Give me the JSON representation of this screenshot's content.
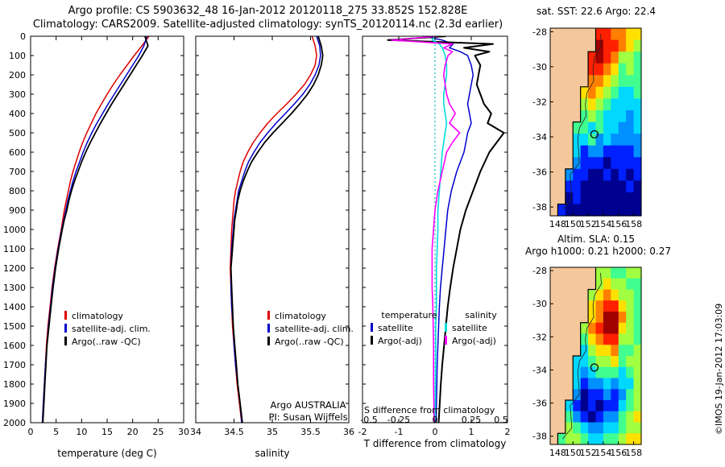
{
  "page": {
    "title_line1": "Argo profile: CS 5903632_48 16-Jan-2012 20120118_275 33.852S 152.828E",
    "title_line2": "Climatology: CARS2009. Satellite-adjusted climatology: synTS_20120114.nc (2.3d earlier)",
    "copyright": "©IMOS 19-Jan-2012 17:03:09"
  },
  "annotations": {
    "argo_program": "Argo AUSTRALIA",
    "argo_pi": "PI: Susan Wijffels"
  },
  "colors": {
    "zero_line": "#00bbbb",
    "land": "#f5c89c"
  },
  "chart_data": [
    {
      "type": "line",
      "xlabel": "temperature (deg C)",
      "xlim": [
        0,
        30
      ],
      "xticks": [
        0,
        5,
        10,
        15,
        20,
        25,
        30
      ],
      "ylim": [
        0,
        2000
      ],
      "yticks": [
        0,
        100,
        200,
        300,
        400,
        500,
        600,
        700,
        800,
        900,
        1000,
        1100,
        1200,
        1300,
        1400,
        1500,
        1600,
        1700,
        1800,
        1900,
        2000
      ],
      "show_depth_labels": true,
      "depths": [
        0,
        50,
        100,
        150,
        200,
        250,
        300,
        350,
        400,
        450,
        500,
        550,
        600,
        650,
        700,
        750,
        800,
        850,
        900,
        950,
        1000,
        1100,
        1200,
        1300,
        1400,
        1500,
        1600,
        1700,
        1800,
        1900,
        2000
      ],
      "series": [
        {
          "name": "climatology",
          "color": "#dd0000",
          "values": [
            23.2,
            21.8,
            20.3,
            18.9,
            17.5,
            16.2,
            15.0,
            13.9,
            12.8,
            11.9,
            11.0,
            10.2,
            9.5,
            8.9,
            8.3,
            7.8,
            7.4,
            7.0,
            6.6,
            6.3,
            6.0,
            5.3,
            4.7,
            4.2,
            3.8,
            3.4,
            3.1,
            2.9,
            2.7,
            2.5,
            2.3
          ]
        },
        {
          "name": "satellite-adj. clim.",
          "color": "#0000cc",
          "values": [
            22.8,
            22.2,
            21.2,
            20.0,
            18.8,
            17.6,
            16.4,
            15.2,
            14.1,
            13.0,
            12.0,
            11.1,
            10.3,
            9.6,
            8.9,
            8.3,
            7.8,
            7.3,
            6.9,
            6.5,
            6.1,
            5.4,
            4.8,
            4.3,
            3.9,
            3.5,
            3.2,
            2.9,
            2.7,
            2.5,
            2.3
          ]
        },
        {
          "name": "Argo(..raw -QC)",
          "color": "#000000",
          "width": 1.8,
          "values": [
            22.4,
            23.0,
            21.9,
            20.7,
            19.5,
            18.3,
            17.1,
            15.9,
            14.8,
            13.7,
            12.7,
            11.7,
            10.8,
            10.0,
            9.3,
            8.6,
            8.0,
            7.5,
            7.1,
            6.6,
            6.2,
            5.5,
            4.9,
            4.4,
            4.0,
            3.6,
            3.2,
            3.0,
            2.8,
            2.6,
            2.4
          ]
        }
      ]
    },
    {
      "type": "line",
      "xlabel": "salinity",
      "xlim": [
        34,
        36
      ],
      "xticks": [
        34,
        34.5,
        35,
        35.5,
        36
      ],
      "ylim": [
        0,
        2000
      ],
      "yticks": [
        0,
        100,
        200,
        300,
        400,
        500,
        600,
        700,
        800,
        900,
        1000,
        1100,
        1200,
        1300,
        1400,
        1500,
        1600,
        1700,
        1800,
        1900,
        2000
      ],
      "show_depth_labels": false,
      "depths": [
        0,
        50,
        100,
        150,
        200,
        250,
        300,
        350,
        400,
        450,
        500,
        550,
        600,
        650,
        700,
        750,
        800,
        850,
        900,
        950,
        1000,
        1100,
        1200,
        1300,
        1400,
        1500,
        1600,
        1700,
        1800,
        1900,
        2000
      ],
      "series": [
        {
          "name": "climatology",
          "color": "#dd0000",
          "values": [
            35.52,
            35.56,
            35.58,
            35.56,
            35.5,
            35.42,
            35.31,
            35.19,
            35.06,
            34.94,
            34.84,
            34.75,
            34.68,
            34.62,
            34.58,
            34.55,
            34.52,
            34.5,
            34.49,
            34.48,
            34.47,
            34.46,
            34.45,
            34.46,
            34.47,
            34.48,
            34.5,
            34.52,
            34.54,
            34.57,
            34.6
          ]
        },
        {
          "name": "satellite-adj. clim.",
          "color": "#0000cc",
          "values": [
            35.58,
            35.62,
            35.63,
            35.61,
            35.56,
            35.49,
            35.4,
            35.29,
            35.17,
            35.05,
            34.94,
            34.84,
            34.76,
            34.69,
            34.64,
            34.6,
            34.56,
            34.54,
            34.52,
            34.5,
            34.49,
            34.47,
            34.46,
            34.46,
            34.47,
            34.49,
            34.5,
            34.52,
            34.55,
            34.58,
            34.6
          ]
        },
        {
          "name": "Argo(..raw -QC)",
          "color": "#000000",
          "width": 1.8,
          "values": [
            35.6,
            35.64,
            35.66,
            35.64,
            35.6,
            35.54,
            35.46,
            35.36,
            35.25,
            35.13,
            35.01,
            34.9,
            34.81,
            34.73,
            34.67,
            34.62,
            34.58,
            34.55,
            34.53,
            34.51,
            34.5,
            34.48,
            34.46,
            34.47,
            34.48,
            34.49,
            34.51,
            34.53,
            34.55,
            34.58,
            34.61
          ]
        }
      ]
    },
    {
      "type": "line",
      "xlabel": "T difference from climatology",
      "xlim": [
        -2,
        2
      ],
      "xticks": [
        -2,
        -1,
        0,
        1,
        2
      ],
      "x2label": "S difference from climatology",
      "x2ticks": [
        -0.5,
        -0.25,
        0,
        0.25,
        0.5
      ],
      "x2_scale": 4,
      "zero_line": true,
      "ylim": [
        0,
        2000
      ],
      "yticks": [
        0,
        100,
        200,
        300,
        400,
        500,
        600,
        700,
        800,
        900,
        1000,
        1100,
        1200,
        1300,
        1400,
        1500,
        1600,
        1700,
        1800,
        1900,
        2000
      ],
      "show_depth_labels": false,
      "legend": {
        "col1": "temperature",
        "col2": "salinity"
      },
      "depths": [
        0,
        20,
        40,
        60,
        80,
        100,
        150,
        200,
        250,
        300,
        350,
        400,
        450,
        500,
        550,
        600,
        700,
        800,
        900,
        1000,
        1100,
        1200,
        1300,
        1400,
        1500,
        1600,
        1700,
        1800,
        1900,
        2000
      ],
      "series": [
        {
          "name": "satellite",
          "axis": "T",
          "color": "#0000cc",
          "values": [
            -0.3,
            0.2,
            0.5,
            0.4,
            0.7,
            0.9,
            1.0,
            1.05,
            1.0,
            0.95,
            0.9,
            0.95,
            1.0,
            0.9,
            0.85,
            0.8,
            0.6,
            0.45,
            0.35,
            0.3,
            0.25,
            0.2,
            0.15,
            0.12,
            0.1,
            0.08,
            0.06,
            0.05,
            0.04,
            0.03
          ]
        },
        {
          "name": "Argo(-adj)",
          "axis": "T",
          "color": "#000000",
          "width": 2,
          "values": [
            0.3,
            -1.3,
            1.6,
            0.8,
            1.5,
            1.1,
            1.25,
            1.2,
            1.15,
            1.25,
            1.35,
            1.55,
            1.45,
            1.9,
            1.7,
            1.5,
            1.25,
            1.05,
            0.85,
            0.7,
            0.6,
            0.5,
            0.42,
            0.35,
            0.3,
            0.25,
            0.2,
            0.16,
            0.13,
            0.1
          ]
        },
        {
          "name": "satellite",
          "axis": "S",
          "color": "#00dddd",
          "scale": 4,
          "width": 1.6,
          "values": [
            0.0,
            -0.02,
            0.03,
            0.05,
            0.06,
            0.07,
            0.08,
            0.08,
            0.07,
            0.06,
            0.06,
            0.07,
            0.08,
            0.07,
            0.06,
            0.05,
            0.04,
            0.03,
            0.02,
            0.02,
            0.015,
            0.01,
            0.01,
            0.01,
            0.005,
            0.005,
            0.004,
            0.003,
            0.002,
            0.001
          ]
        },
        {
          "name": "Argo(-adj)",
          "axis": "S",
          "color": "#ff00ff",
          "scale": 4,
          "width": 1.6,
          "values": [
            0.02,
            -0.3,
            0.12,
            0.06,
            0.12,
            0.09,
            0.07,
            0.06,
            0.07,
            0.08,
            0.1,
            0.14,
            0.1,
            0.17,
            0.12,
            0.08,
            0.05,
            0.02,
            0.0,
            -0.01,
            -0.02,
            -0.02,
            -0.02,
            -0.015,
            -0.012,
            -0.01,
            -0.01,
            -0.01,
            -0.008,
            -0.006
          ]
        }
      ]
    },
    {
      "type": "heatmap",
      "title": "sat. SST: 22.6 Argo: 22.4",
      "lon_range": [
        147,
        159
      ],
      "lat_range": [
        -27.8,
        -38.5
      ],
      "lon_ticks": [
        148,
        150,
        152,
        154,
        156,
        158
      ],
      "lat_ticks": [
        -28,
        -30,
        -32,
        -34,
        -36,
        -38
      ],
      "marker": {
        "lon": 152.828,
        "lat": -33.852
      },
      "palette": [
        "#000090",
        "#0020ff",
        "#0090ff",
        "#00d8ff",
        "#40ff90",
        "#a0ff40",
        "#ffe000",
        "#ff8000",
        "#ff2000",
        "#a00000"
      ],
      "grid": [
        "LLLLLL887766",
        "LLLLLL988765",
        "LLLLL8987554",
        "LLLLL8876454",
        "LLLLL7765444",
        "LLLL67654334",
        "LLLL56543333",
        "LLLL45433323",
        "LLL443433223",
        "LLL334232222",
        "LLL312211112",
        "LLL211101111",
        "LL2110010101",
        "LL1100000010",
        "LL0100000000",
        "L10000000000"
      ]
    },
    {
      "type": "heatmap",
      "title_line1": "Altim. SLA: 0.15",
      "title_line2": "Argo h1000: 0.21 h2000: 0.27",
      "lon_range": [
        147,
        159
      ],
      "lat_range": [
        -27.8,
        -38.5
      ],
      "lon_ticks": [
        148,
        150,
        152,
        154,
        156,
        158
      ],
      "lat_ticks": [
        -28,
        -30,
        -32,
        -34,
        -36,
        -38
      ],
      "marker": {
        "lon": 152.828,
        "lat": -33.852
      },
      "palette": [
        "#000090",
        "#0020ff",
        "#0090ff",
        "#00d8ff",
        "#40ff90",
        "#a0ff40",
        "#ffe000",
        "#ff8000",
        "#ff2000",
        "#a00000"
      ],
      "grid": [
        "LLLLLL554455",
        "LLLLLL565544",
        "LLLLL5676554",
        "LLLLL6788654",
        "LLLLL6799754",
        "LLLL57899654",
        "LLLL46788554",
        "LLLL35667445",
        "LLL334556455",
        "LLL323444345",
        "LLL312232335",
        "LLL201121245",
        "LL3101011345",
        "LL4210122456",
        "LL5432233455",
        "L45543344566"
      ]
    }
  ]
}
